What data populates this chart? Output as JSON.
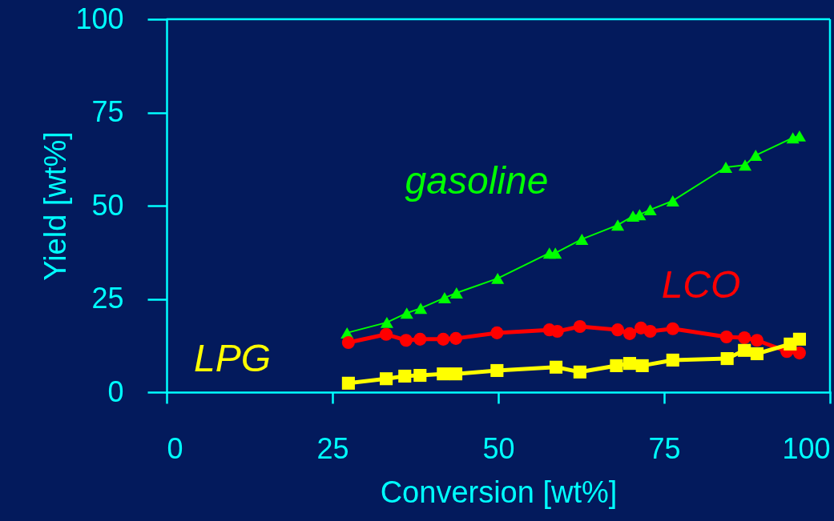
{
  "chart_data": {
    "type": "line",
    "xlabel": "Conversion [wt%]",
    "ylabel": "Yield [wt%]",
    "xlim": [
      0,
      100
    ],
    "ylim": [
      0,
      100
    ],
    "xticks": [
      0,
      25,
      50,
      75,
      100
    ],
    "yticks": [
      0,
      25,
      50,
      75,
      100
    ],
    "grid": false,
    "line_style": "solid",
    "series": [
      {
        "name": "gasoline",
        "color": "#00ff00",
        "marker": "triangle",
        "x": [
          27.2,
          33.2,
          36.2,
          38.3,
          41.9,
          43.7,
          49.9,
          57.7,
          58.6,
          62.6,
          68.0,
          70.3,
          71.3,
          72.9,
          76.3,
          84.3,
          87.2,
          88.8,
          94.4,
          95.4
        ],
        "values": [
          15.9,
          18.7,
          21.2,
          22.5,
          25.3,
          26.6,
          30.5,
          37.3,
          37.3,
          41.0,
          44.8,
          47.2,
          47.6,
          48.9,
          51.3,
          60.3,
          60.9,
          63.5,
          68.2,
          68.7
        ]
      },
      {
        "name": "LCO",
        "color": "#ff0000",
        "marker": "circle",
        "x": [
          27.4,
          33.1,
          36.1,
          38.2,
          41.7,
          43.6,
          49.8,
          57.7,
          58.9,
          62.3,
          68.0,
          69.8,
          71.5,
          72.9,
          76.3,
          84.4,
          87.1,
          89.0,
          93.5,
          95.4
        ],
        "values": [
          13.3,
          15.5,
          13.9,
          14.2,
          14.2,
          14.4,
          15.9,
          16.7,
          16.3,
          17.6,
          16.7,
          15.7,
          17.2,
          16.3,
          17.0,
          14.8,
          14.6,
          13.9,
          10.9,
          10.5
        ]
      },
      {
        "name": "LPG",
        "color": "#ffff00",
        "marker": "square",
        "x": [
          27.4,
          33.1,
          35.9,
          38.2,
          41.7,
          43.6,
          49.8,
          58.7,
          62.3,
          67.8,
          69.8,
          71.7,
          76.3,
          84.5,
          87.1,
          89.0,
          94.0,
          95.4
        ],
        "values": [
          2.4,
          3.6,
          4.3,
          4.5,
          4.9,
          4.9,
          5.8,
          6.7,
          5.4,
          7.1,
          7.7,
          7.1,
          8.6,
          9.0,
          11.2,
          10.3,
          12.9,
          14.2
        ]
      }
    ]
  }
}
